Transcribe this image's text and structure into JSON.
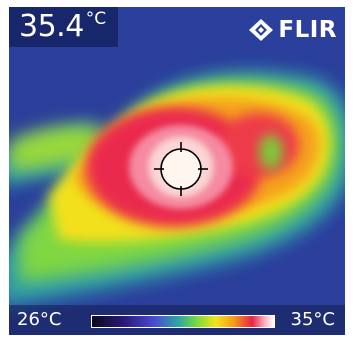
{
  "readout": {
    "value": "35.4",
    "unit": "°C"
  },
  "brand": {
    "name": "FLIR",
    "icon": "flir-diamond-icon"
  },
  "scale": {
    "min": "26°C",
    "max": "35°C"
  },
  "palette": {
    "cold": "#2a3f9a",
    "cool": "#2ea8a0",
    "mid": "#f2e51e",
    "warm": "#f59a18",
    "hot": "#e8244a",
    "hottest": "#f8d6d2"
  }
}
